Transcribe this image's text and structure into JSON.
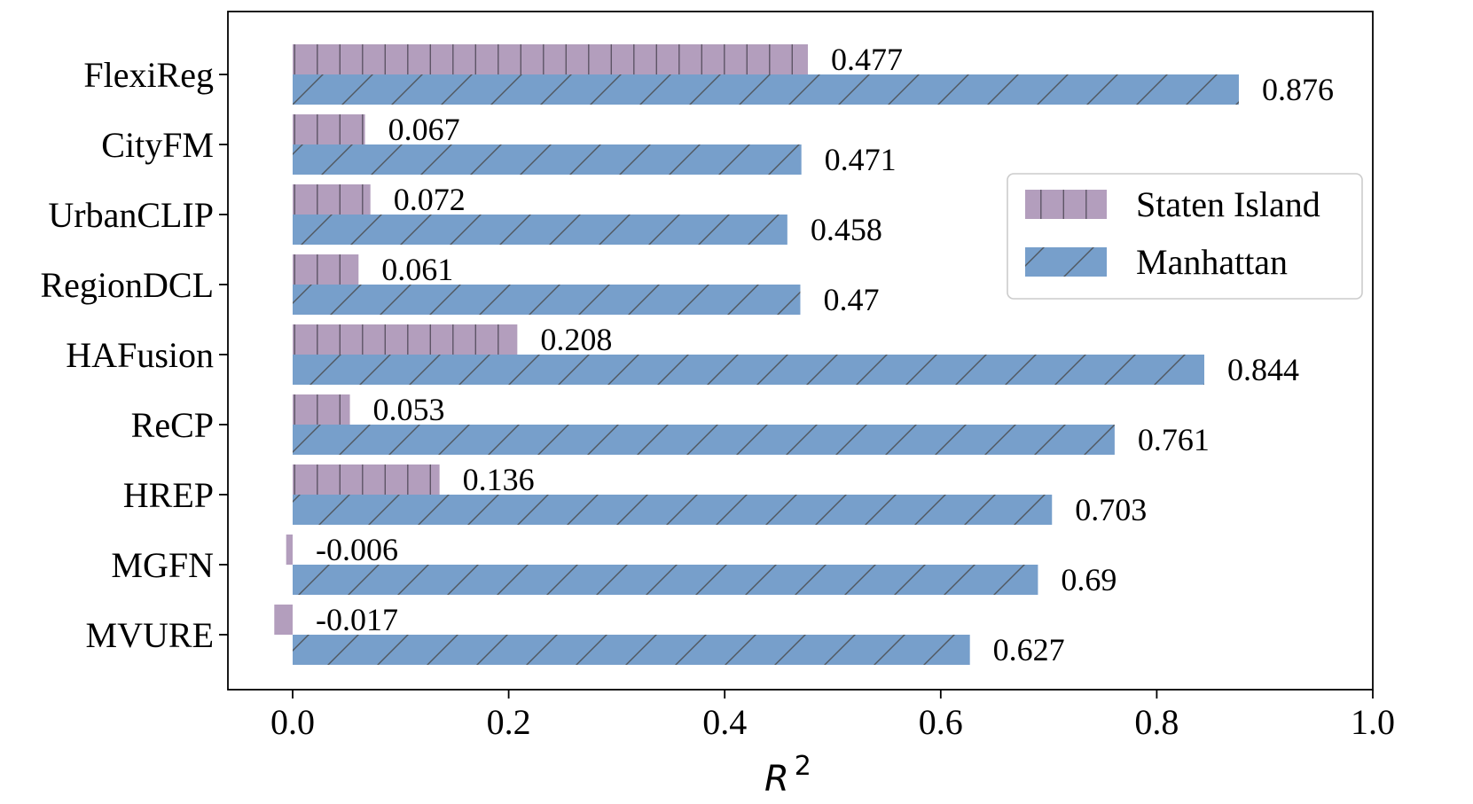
{
  "chart_data": {
    "type": "bar",
    "orientation": "horizontal",
    "title": "",
    "xlabel": "R",
    "xlabel_superscript": "2",
    "ylabel": "",
    "xlim": [
      -0.06,
      1.0
    ],
    "xticks": [
      0.0,
      0.2,
      0.4,
      0.6,
      0.8,
      1.0
    ],
    "xtick_labels": [
      "0.0",
      "0.2",
      "0.4",
      "0.6",
      "0.8",
      "1.0"
    ],
    "grid": false,
    "legend_position": "center-right",
    "categories": [
      "FlexiReg",
      "CityFM",
      "UrbanCLIP",
      "RegionDCL",
      "HAFusion",
      "ReCP",
      "HREP",
      "MGFN",
      "MVURE"
    ],
    "series": [
      {
        "name": "Staten Island",
        "color": "#b39ebd",
        "hatch": "vertical",
        "values": [
          0.477,
          0.067,
          0.072,
          0.061,
          0.208,
          0.053,
          0.136,
          -0.006,
          -0.017
        ],
        "labels": [
          "0.477",
          "0.067",
          "0.072",
          "0.061",
          "0.208",
          "0.053",
          "0.136",
          "-0.006",
          "-0.017"
        ]
      },
      {
        "name": "Manhattan",
        "color": "#779fcb",
        "hatch": "diagonal",
        "values": [
          0.876,
          0.471,
          0.458,
          0.47,
          0.844,
          0.761,
          0.703,
          0.69,
          0.627
        ],
        "labels": [
          "0.876",
          "0.471",
          "0.458",
          "0.47",
          "0.844",
          "0.761",
          "0.703",
          "0.69",
          "0.627"
        ]
      }
    ]
  }
}
